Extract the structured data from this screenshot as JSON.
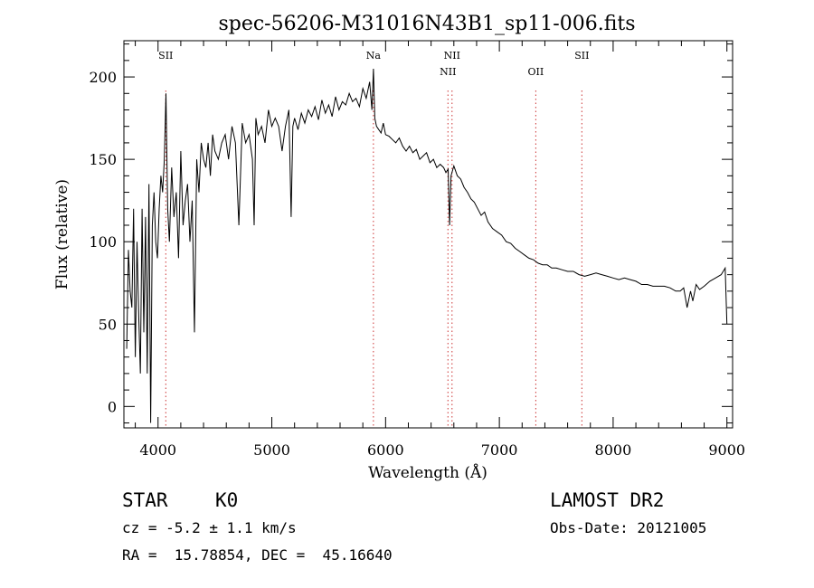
{
  "chart_data": {
    "type": "line",
    "title": "spec-56206-M31016N43B1_sp11-006.fits",
    "xlabel": "Wavelength (Å)",
    "ylabel": "Flux (relative)",
    "xlim": [
      3700,
      9050
    ],
    "ylim": [
      -13,
      222
    ],
    "xticks": [
      4000,
      5000,
      6000,
      7000,
      8000,
      9000
    ],
    "yticks": [
      0,
      50,
      100,
      150,
      200
    ],
    "grid": false,
    "line_color": "#000000",
    "line_markers": [
      {
        "name": "SII",
        "x": 4068,
        "stack": 0
      },
      {
        "name": "Na",
        "x": 5893,
        "stack": 0
      },
      {
        "name": "NII",
        "x": 6548,
        "stack": 1
      },
      {
        "name": "NII",
        "x": 6584,
        "stack": 0
      },
      {
        "name": "OII",
        "x": 7320,
        "stack": 1
      },
      {
        "name": "SII",
        "x": 7725,
        "stack": 0
      }
    ],
    "marker_color": "#cc3333",
    "series": [
      {
        "x": [
          3725,
          3740,
          3755,
          3770,
          3785,
          3800,
          3815,
          3830,
          3845,
          3860,
          3875,
          3890,
          3905,
          3920,
          3935,
          3950,
          3965,
          3980,
          3995,
          4010,
          4025,
          4040,
          4055,
          4070,
          4085,
          4100,
          4120,
          4140,
          4160,
          4180,
          4200,
          4220,
          4240,
          4260,
          4280,
          4300,
          4320,
          4340,
          4360,
          4380,
          4400,
          4420,
          4440,
          4460,
          4480,
          4500,
          4530,
          4560,
          4590,
          4620,
          4650,
          4680,
          4710,
          4740,
          4770,
          4800,
          4830,
          4845,
          4860,
          4880,
          4910,
          4940,
          4970,
          5000,
          5030,
          5060,
          5090,
          5120,
          5150,
          5170,
          5185,
          5200,
          5230,
          5260,
          5290,
          5320,
          5350,
          5380,
          5410,
          5440,
          5470,
          5500,
          5530,
          5560,
          5590,
          5620,
          5650,
          5680,
          5710,
          5740,
          5770,
          5800,
          5830,
          5860,
          5880,
          5893,
          5905,
          5920,
          5940,
          5960,
          5980,
          6000,
          6030,
          6060,
          6090,
          6120,
          6150,
          6180,
          6210,
          6240,
          6270,
          6300,
          6330,
          6360,
          6390,
          6420,
          6450,
          6480,
          6510,
          6530,
          6550,
          6563,
          6575,
          6600,
          6630,
          6660,
          6690,
          6720,
          6750,
          6780,
          6810,
          6840,
          6870,
          6900,
          6940,
          6980,
          7020,
          7060,
          7100,
          7140,
          7180,
          7220,
          7260,
          7300,
          7340,
          7380,
          7420,
          7460,
          7500,
          7550,
          7600,
          7650,
          7700,
          7750,
          7800,
          7850,
          7900,
          7950,
          8000,
          8050,
          8100,
          8150,
          8200,
          8250,
          8300,
          8350,
          8400,
          8450,
          8500,
          8550,
          8590,
          8620,
          8650,
          8680,
          8700,
          8730,
          8760,
          8800,
          8850,
          8900,
          8950,
          8985,
          9000
        ],
        "y": [
          35,
          95,
          70,
          60,
          120,
          30,
          100,
          55,
          20,
          120,
          45,
          115,
          20,
          135,
          -10,
          110,
          130,
          100,
          90,
          120,
          140,
          130,
          150,
          190,
          120,
          100,
          145,
          115,
          130,
          90,
          155,
          110,
          125,
          135,
          100,
          125,
          45,
          150,
          130,
          160,
          150,
          145,
          160,
          140,
          165,
          155,
          150,
          160,
          165,
          150,
          170,
          160,
          110,
          172,
          160,
          165,
          150,
          110,
          175,
          165,
          170,
          160,
          180,
          170,
          175,
          170,
          155,
          170,
          180,
          115,
          170,
          175,
          168,
          178,
          172,
          180,
          176,
          182,
          174,
          186,
          178,
          183,
          176,
          188,
          180,
          185,
          183,
          190,
          185,
          187,
          182,
          193,
          187,
          197,
          180,
          205,
          175,
          170,
          168,
          166,
          172,
          165,
          164,
          162,
          160,
          163,
          158,
          155,
          158,
          154,
          156,
          150,
          152,
          154,
          148,
          150,
          145,
          147,
          145,
          142,
          144,
          110,
          140,
          146,
          140,
          138,
          133,
          130,
          126,
          124,
          120,
          116,
          118,
          112,
          108,
          106,
          104,
          100,
          99,
          96,
          94,
          92,
          90,
          89,
          87,
          86,
          86,
          84,
          84,
          83,
          82,
          82,
          80,
          79,
          80,
          81,
          80,
          79,
          78,
          77,
          78,
          77,
          76,
          74,
          74,
          73,
          73,
          73,
          72,
          70,
          70,
          72,
          60,
          70,
          64,
          74,
          71,
          73,
          76,
          78,
          80,
          84,
          50
        ]
      }
    ]
  },
  "info": {
    "class_label": "STAR",
    "subclass_label": "K0",
    "redshift_line": "cz = -5.2 ± 1.1 km/s",
    "coords_line": "RA =  15.78854, DEC =  45.16640",
    "survey_label": "LAMOST DR2",
    "obs_date_line": "Obs-Date: 20121005"
  }
}
